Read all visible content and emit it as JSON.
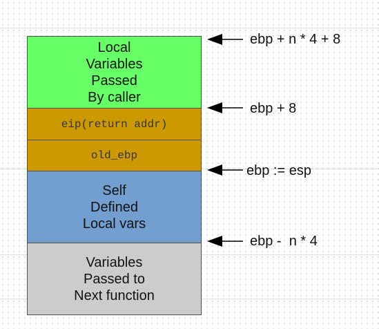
{
  "blocks": [
    {
      "id": "local-vars-passed",
      "text": "Local\nVariables\nPassed\nBy caller",
      "color": "#66ff66",
      "font": "sans"
    },
    {
      "id": "eip",
      "text": "eip(return addr)",
      "color": "#cc9900",
      "font": "mono"
    },
    {
      "id": "old-ebp",
      "text": "old_ebp",
      "color": "#cc9900",
      "font": "mono"
    },
    {
      "id": "self-defined",
      "text": "Self\nDefined\nLocal vars",
      "color": "#729fcf",
      "font": "sans"
    },
    {
      "id": "next-function",
      "text": "Variables\nPassed to\nNext function",
      "color": "#cccccc",
      "font": "sans"
    }
  ],
  "pointers": [
    {
      "id": "ebp-n4-8",
      "text": "ebp + n * 4 + 8",
      "icon": "arrow-left-icon"
    },
    {
      "id": "ebp-8",
      "text": "ebp + 8",
      "icon": "arrow-left-icon"
    },
    {
      "id": "ebp-esp",
      "text": "ebp := esp",
      "icon": "arrow-left-icon"
    },
    {
      "id": "ebp-minus",
      "text": "ebp -  n * 4",
      "icon": "arrow-left-icon"
    }
  ]
}
